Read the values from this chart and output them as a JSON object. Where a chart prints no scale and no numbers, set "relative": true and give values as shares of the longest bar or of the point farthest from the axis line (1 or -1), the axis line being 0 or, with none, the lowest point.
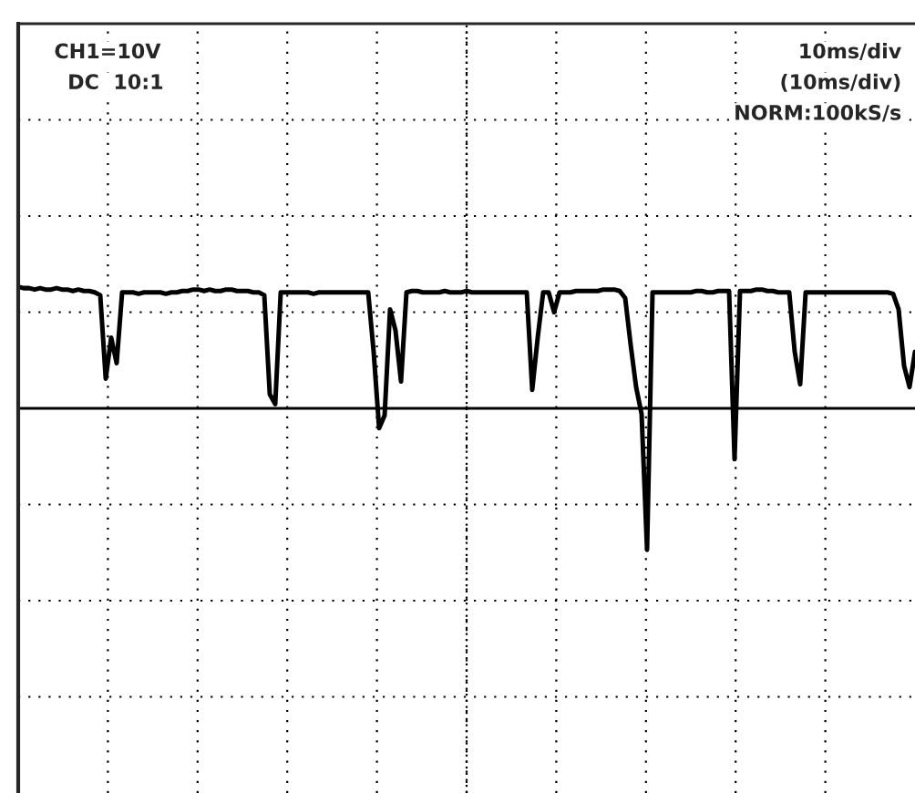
{
  "chart_data": {
    "type": "line",
    "relative": true,
    "grid": true,
    "legend": false,
    "tick_labels": false,
    "marker": "none",
    "line_style": "solid",
    "annotations": [
      "CH1=10V",
      "DC  10:1",
      "10ms/div",
      "(10ms/div)",
      "NORM:100kS/s"
    ],
    "categories": [
      null,
      null,
      null,
      null,
      null,
      null,
      null,
      null,
      null,
      null,
      null,
      null,
      null,
      null,
      null,
      null,
      null,
      null,
      null,
      null,
      null,
      null,
      null,
      null,
      null,
      null,
      null,
      null,
      null,
      null,
      null,
      null,
      null,
      null,
      null,
      null,
      null,
      null,
      null,
      null,
      null,
      null,
      null,
      null,
      null,
      null,
      null,
      null,
      null,
      null,
      null,
      null,
      null,
      null,
      null,
      null,
      null,
      null,
      null,
      null,
      null,
      null,
      null,
      null,
      null,
      null,
      null,
      null,
      null,
      null,
      null,
      null,
      null,
      null,
      null,
      null,
      null,
      null,
      null,
      null,
      null,
      null,
      null,
      null,
      null,
      null,
      null,
      null,
      null,
      null,
      null,
      null,
      null,
      null,
      null,
      null,
      null,
      null,
      null,
      null,
      null,
      null,
      null,
      null,
      null,
      null,
      null,
      null,
      null,
      null,
      null,
      null,
      null,
      null,
      null,
      null,
      null,
      null,
      null,
      null,
      null,
      null,
      null,
      null,
      null,
      null,
      null,
      null,
      null,
      null,
      null,
      null,
      null,
      null,
      null,
      null,
      null,
      null,
      null,
      null,
      null,
      null,
      null,
      null,
      null,
      null,
      null,
      null,
      null,
      null,
      null,
      null,
      null,
      null,
      null,
      null,
      null,
      null,
      null,
      null,
      null,
      null,
      null,
      null,
      null
    ],
    "series": [
      {
        "color": "#000000",
        "values": [
          0.86,
          0.85,
          0.85,
          0.84,
          0.85,
          0.84,
          0.84,
          0.85,
          0.84,
          0.84,
          0.83,
          0.84,
          0.83,
          0.83,
          0.82,
          0.8,
          0.21,
          0.5,
          0.32,
          0.82,
          0.82,
          0.82,
          0.81,
          0.82,
          0.82,
          0.82,
          0.82,
          0.81,
          0.82,
          0.82,
          0.83,
          0.83,
          0.84,
          0.84,
          0.83,
          0.84,
          0.83,
          0.83,
          0.84,
          0.84,
          0.83,
          0.83,
          0.83,
          0.82,
          0.82,
          0.8,
          0.1,
          0.03,
          0.82,
          0.82,
          0.82,
          0.82,
          0.82,
          0.82,
          0.81,
          0.82,
          0.82,
          0.82,
          0.82,
          0.82,
          0.82,
          0.82,
          0.82,
          0.82,
          0.82,
          0.4,
          -0.14,
          -0.05,
          0.7,
          0.55,
          0.19,
          0.82,
          0.83,
          0.83,
          0.82,
          0.82,
          0.82,
          0.82,
          0.83,
          0.82,
          0.82,
          0.82,
          0.83,
          0.82,
          0.82,
          0.82,
          0.82,
          0.82,
          0.82,
          0.82,
          0.82,
          0.82,
          0.82,
          0.82,
          0.13,
          0.5,
          0.82,
          0.82,
          0.68,
          0.82,
          0.82,
          0.82,
          0.83,
          0.83,
          0.83,
          0.83,
          0.83,
          0.84,
          0.84,
          0.84,
          0.83,
          0.78,
          0.45,
          0.15,
          -0.04,
          -1,
          0.82,
          0.82,
          0.82,
          0.82,
          0.82,
          0.82,
          0.82,
          0.82,
          0.83,
          0.83,
          0.82,
          0.82,
          0.83,
          0.83,
          0.83,
          -0.36,
          0.83,
          0.83,
          0.83,
          0.84,
          0.84,
          0.83,
          0.83,
          0.82,
          0.82,
          0.82,
          0.4,
          0.17,
          0.82,
          0.82,
          0.82,
          0.82,
          0.82,
          0.82,
          0.82,
          0.82,
          0.82,
          0.82,
          0.82,
          0.82,
          0.82,
          0.82,
          0.82,
          0.82,
          0.81,
          0.7,
          0.3,
          0.15,
          0.4
        ]
      }
    ]
  }
}
